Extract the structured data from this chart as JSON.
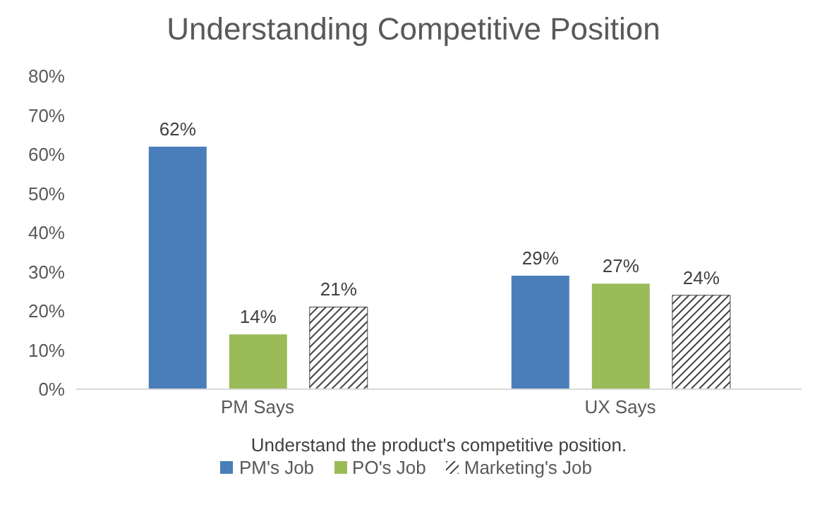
{
  "chart_data": {
    "type": "bar",
    "title": "Understanding Competitive Position",
    "xlabel": "Understand the product's competitive position.",
    "categories": [
      "PM Says",
      "UX Says"
    ],
    "series": [
      {
        "name": "PM's Job",
        "color": "#4a7ebb",
        "values": [
          62,
          29
        ],
        "value_labels": [
          "62%",
          "29%"
        ]
      },
      {
        "name": "PO's Job",
        "color": "#9bbb59",
        "values": [
          14,
          27
        ],
        "value_labels": [
          "14%",
          "27%"
        ]
      },
      {
        "name": "Marketing's Job",
        "color": "#404040",
        "values": [
          21,
          24
        ],
        "value_labels": [
          "21%",
          "24%"
        ]
      }
    ],
    "ylim": [
      0,
      80
    ],
    "yticks": [
      {
        "value": 0,
        "label": "0%"
      },
      {
        "value": 10,
        "label": "10%"
      },
      {
        "value": 20,
        "label": "20%"
      },
      {
        "value": 30,
        "label": "30%"
      },
      {
        "value": 40,
        "label": "40%"
      },
      {
        "value": 50,
        "label": "50%"
      },
      {
        "value": 60,
        "label": "60%"
      },
      {
        "value": 70,
        "label": "70%"
      },
      {
        "value": 80,
        "label": "80%"
      }
    ],
    "grid": false,
    "legend": "bottom"
  }
}
